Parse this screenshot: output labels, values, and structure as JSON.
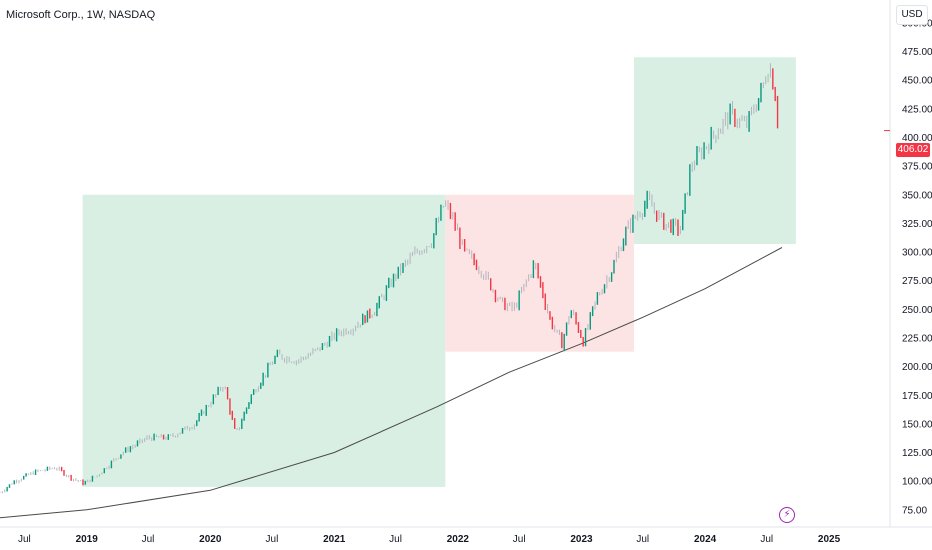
{
  "header": {
    "title": "Microsoft Corp., 1W, NASDAQ",
    "currency": "USD"
  },
  "last_price": {
    "label": "406.02",
    "value": 406.02,
    "color": "#f23645"
  },
  "colors": {
    "up": "#089981",
    "down": "#f23645",
    "neutral": "#b2b5be",
    "zone_up": "#d9efe3",
    "zone_down": "#fde4e4",
    "ma_line": "#4a4a4a"
  },
  "icons": {
    "event": "lightning-bolt-icon"
  },
  "chart_data": {
    "type": "bar",
    "title": "Microsoft Corp., 1W, NASDAQ",
    "ylim": [
      60,
      520
    ],
    "y_ticks": [
      75,
      100,
      125,
      150,
      175,
      200,
      225,
      250,
      275,
      300,
      325,
      350,
      375,
      400,
      425,
      450,
      475,
      500
    ],
    "y_tick_labels": [
      "75.00",
      "100.00",
      "125.00",
      "150.00",
      "175.00",
      "200.00",
      "225.00",
      "250.00",
      "275.00",
      "300.00",
      "325.00",
      "350.00",
      "375.00",
      "400.00",
      "425.00",
      "450.00",
      "475.00",
      "500.00"
    ],
    "x_ticks": [
      "2018-07",
      "2019-01",
      "2019-07",
      "2020-01",
      "2020-07",
      "2021-01",
      "2021-07",
      "2022-01",
      "2022-07",
      "2023-01",
      "2023-07",
      "2024-01",
      "2024-07",
      "2025-01"
    ],
    "x_tick_labels": [
      "Jul",
      "2019",
      "Jul",
      "2020",
      "Jul",
      "2021",
      "Jul",
      "2022",
      "Jul",
      "2023",
      "Jul",
      "2024",
      "Jul",
      "2025"
    ],
    "x_range": [
      "2018-04-20",
      "2025-06-30"
    ],
    "price_path": [
      [
        "2018-04-20",
        90
      ],
      [
        "2018-06-01",
        100
      ],
      [
        "2018-08-01",
        108
      ],
      [
        "2018-10-01",
        112
      ],
      [
        "2018-11-15",
        103
      ],
      [
        "2018-12-24",
        98
      ],
      [
        "2019-02-01",
        105
      ],
      [
        "2019-04-15",
        125
      ],
      [
        "2019-07-01",
        138
      ],
      [
        "2019-09-01",
        138
      ],
      [
        "2019-11-15",
        150
      ],
      [
        "2020-02-10",
        185
      ],
      [
        "2020-03-16",
        140
      ],
      [
        "2020-05-01",
        175
      ],
      [
        "2020-07-15",
        210
      ],
      [
        "2020-09-15",
        205
      ],
      [
        "2020-11-15",
        215
      ],
      [
        "2021-01-15",
        230
      ],
      [
        "2021-03-01",
        235
      ],
      [
        "2021-05-01",
        250
      ],
      [
        "2021-07-01",
        280
      ],
      [
        "2021-09-01",
        300
      ],
      [
        "2021-10-15",
        310
      ],
      [
        "2021-11-22",
        343
      ],
      [
        "2021-12-15",
        330
      ],
      [
        "2022-01-20",
        300
      ],
      [
        "2022-03-10",
        285
      ],
      [
        "2022-05-10",
        255
      ],
      [
        "2022-06-15",
        250
      ],
      [
        "2022-08-15",
        290
      ],
      [
        "2022-10-01",
        240
      ],
      [
        "2022-11-04",
        220
      ],
      [
        "2022-11-30",
        250
      ],
      [
        "2023-01-06",
        222
      ],
      [
        "2023-02-15",
        260
      ],
      [
        "2023-04-01",
        285
      ],
      [
        "2023-05-15",
        320
      ],
      [
        "2023-07-15",
        345
      ],
      [
        "2023-09-01",
        325
      ],
      [
        "2023-10-20",
        320
      ],
      [
        "2023-11-20",
        375
      ],
      [
        "2024-01-20",
        400
      ],
      [
        "2024-03-15",
        420
      ],
      [
        "2024-05-01",
        410
      ],
      [
        "2024-06-15",
        440
      ],
      [
        "2024-07-08",
        465
      ],
      [
        "2024-07-25",
        440
      ],
      [
        "2024-08-05",
        406
      ]
    ],
    "moving_average": [
      [
        "2018-04-20",
        68
      ],
      [
        "2019-01-01",
        75
      ],
      [
        "2020-01-01",
        92
      ],
      [
        "2021-01-01",
        125
      ],
      [
        "2021-11-01",
        165
      ],
      [
        "2022-06-01",
        195
      ],
      [
        "2023-01-01",
        220
      ],
      [
        "2023-07-01",
        243
      ],
      [
        "2024-01-01",
        268
      ],
      [
        "2024-08-15",
        304
      ]
    ],
    "zones": [
      {
        "kind": "up",
        "x0": "2018-12-20",
        "x1": "2021-11-25",
        "y0": 95,
        "y1": 350
      },
      {
        "kind": "down",
        "x0": "2021-11-25",
        "x1": "2023-06-05",
        "y0": 213,
        "y1": 350
      },
      {
        "kind": "up",
        "x0": "2023-06-05",
        "x1": "2024-09-25",
        "y0": 307,
        "y1": 470
      }
    ],
    "grid": false,
    "legend": "none"
  }
}
